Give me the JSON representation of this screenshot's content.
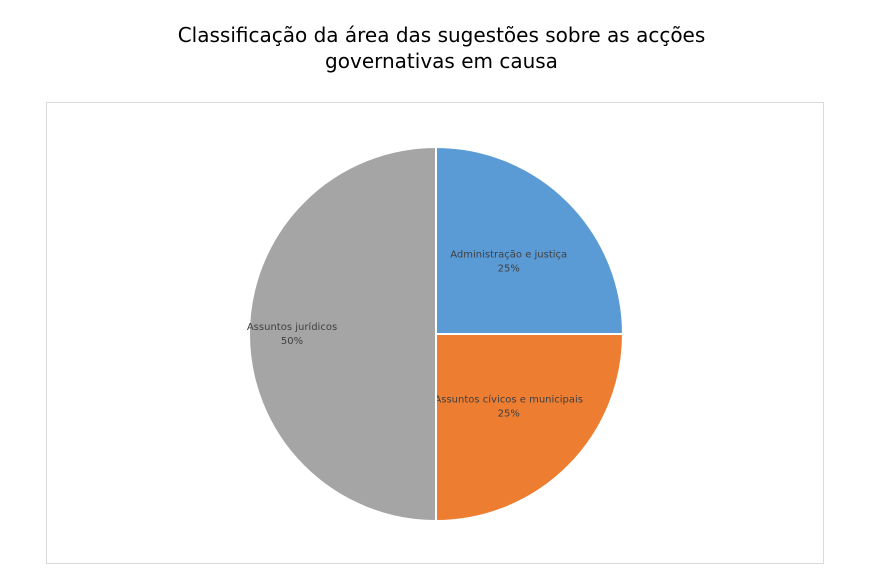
{
  "chart_data": {
    "type": "pie",
    "title_lines": [
      "Classificação da área das sugestões sobre as acções",
      "governativas em causa"
    ],
    "slices": [
      {
        "name": "Administração e justiça",
        "value": 25,
        "label": "25%",
        "color": "#5b9bd5"
      },
      {
        "name": "Assuntos cívicos e municipais",
        "value": 25,
        "label": "25%",
        "color": "#ed7d31"
      },
      {
        "name": "Assuntos jurídicos",
        "value": 50,
        "label": "50%",
        "color": "#a5a5a5"
      }
    ]
  }
}
